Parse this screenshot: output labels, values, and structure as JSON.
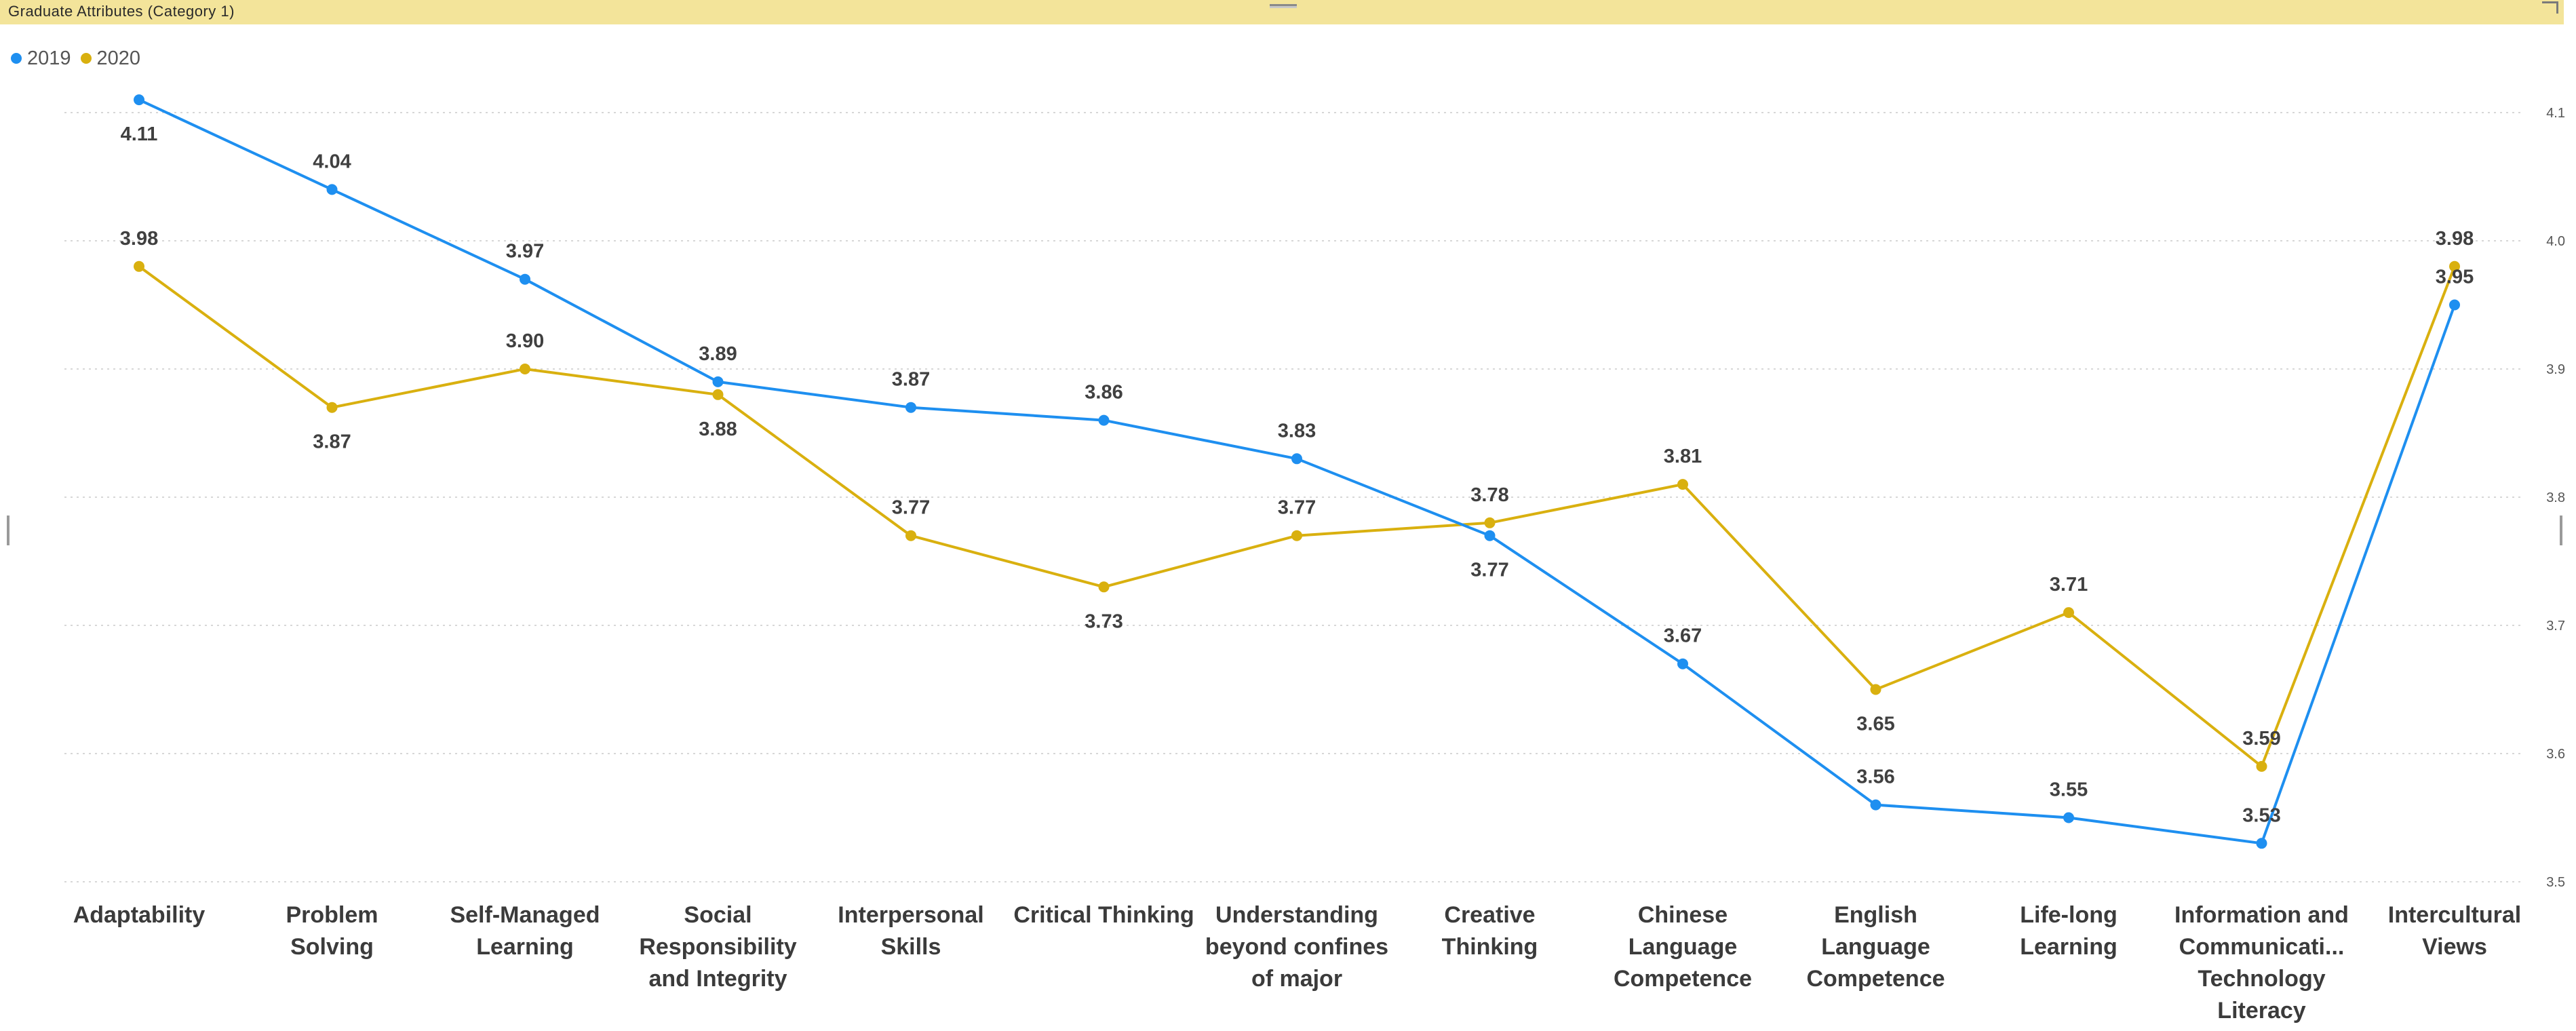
{
  "visual": {
    "title": "Graduate Attributes (Category 1)"
  },
  "colors": {
    "2019": "#1e8ff0",
    "2020": "#d9b00f",
    "gridline": "#d7d7d7",
    "header": "#f3e49a"
  },
  "legend": [
    {
      "label": "2019",
      "color": "#1e8ff0"
    },
    {
      "label": "2020",
      "color": "#d9b00f"
    }
  ],
  "chart_data": {
    "type": "line",
    "title": "Graduate Attributes (Category 1)",
    "xlabel": "",
    "ylabel": "",
    "ylim": [
      3.5,
      4.1
    ],
    "yticks": [
      "3.5",
      "3.6",
      "3.7",
      "3.8",
      "3.9",
      "4.0",
      "4.1"
    ],
    "grid": true,
    "legend_position": "top-left",
    "categories": [
      [
        "Adaptability"
      ],
      [
        "Problem",
        "Solving"
      ],
      [
        "Self-Managed",
        "Learning"
      ],
      [
        "Social",
        "Responsibility",
        "and Integrity"
      ],
      [
        "Interpersonal",
        "Skills"
      ],
      [
        "Critical Thinking"
      ],
      [
        "Understanding",
        "beyond confines",
        "of major"
      ],
      [
        "Creative",
        "Thinking"
      ],
      [
        "Chinese",
        "Language",
        "Competence"
      ],
      [
        "English",
        "Language",
        "Competence"
      ],
      [
        "Life-long",
        "Learning"
      ],
      [
        "Information and",
        "Communicati...",
        "Technology",
        "Literacy"
      ],
      [
        "Intercultural",
        "Views"
      ]
    ],
    "series": [
      {
        "name": "2019",
        "color": "#1e8ff0",
        "values": [
          4.11,
          4.04,
          3.97,
          3.89,
          3.87,
          3.86,
          3.83,
          3.77,
          3.67,
          3.56,
          3.55,
          3.53,
          3.95
        ],
        "labels": [
          "4.11",
          "4.04",
          "3.97",
          "3.89",
          "3.87",
          "3.86",
          "3.83",
          "3.77",
          "3.67",
          "3.56",
          "3.55",
          "3.53",
          "3.95"
        ],
        "label_side": [
          "below",
          "above",
          "above",
          "above",
          "above",
          "above",
          "above",
          "below",
          "above",
          "above",
          "above",
          "above",
          "above"
        ]
      },
      {
        "name": "2020",
        "color": "#d9b00f",
        "values": [
          3.98,
          3.87,
          3.9,
          3.88,
          3.77,
          3.73,
          3.77,
          3.78,
          3.81,
          3.65,
          3.71,
          3.59,
          3.98
        ],
        "labels": [
          "3.98",
          "3.87",
          "3.90",
          "3.88",
          "3.77",
          "3.73",
          "3.77",
          "3.78",
          "3.81",
          "3.65",
          "3.71",
          "3.59",
          "3.98"
        ],
        "label_side": [
          "above",
          "below",
          "above",
          "below",
          "above",
          "below",
          "above",
          "above",
          "above",
          "below",
          "above",
          "above",
          "above"
        ]
      }
    ]
  }
}
